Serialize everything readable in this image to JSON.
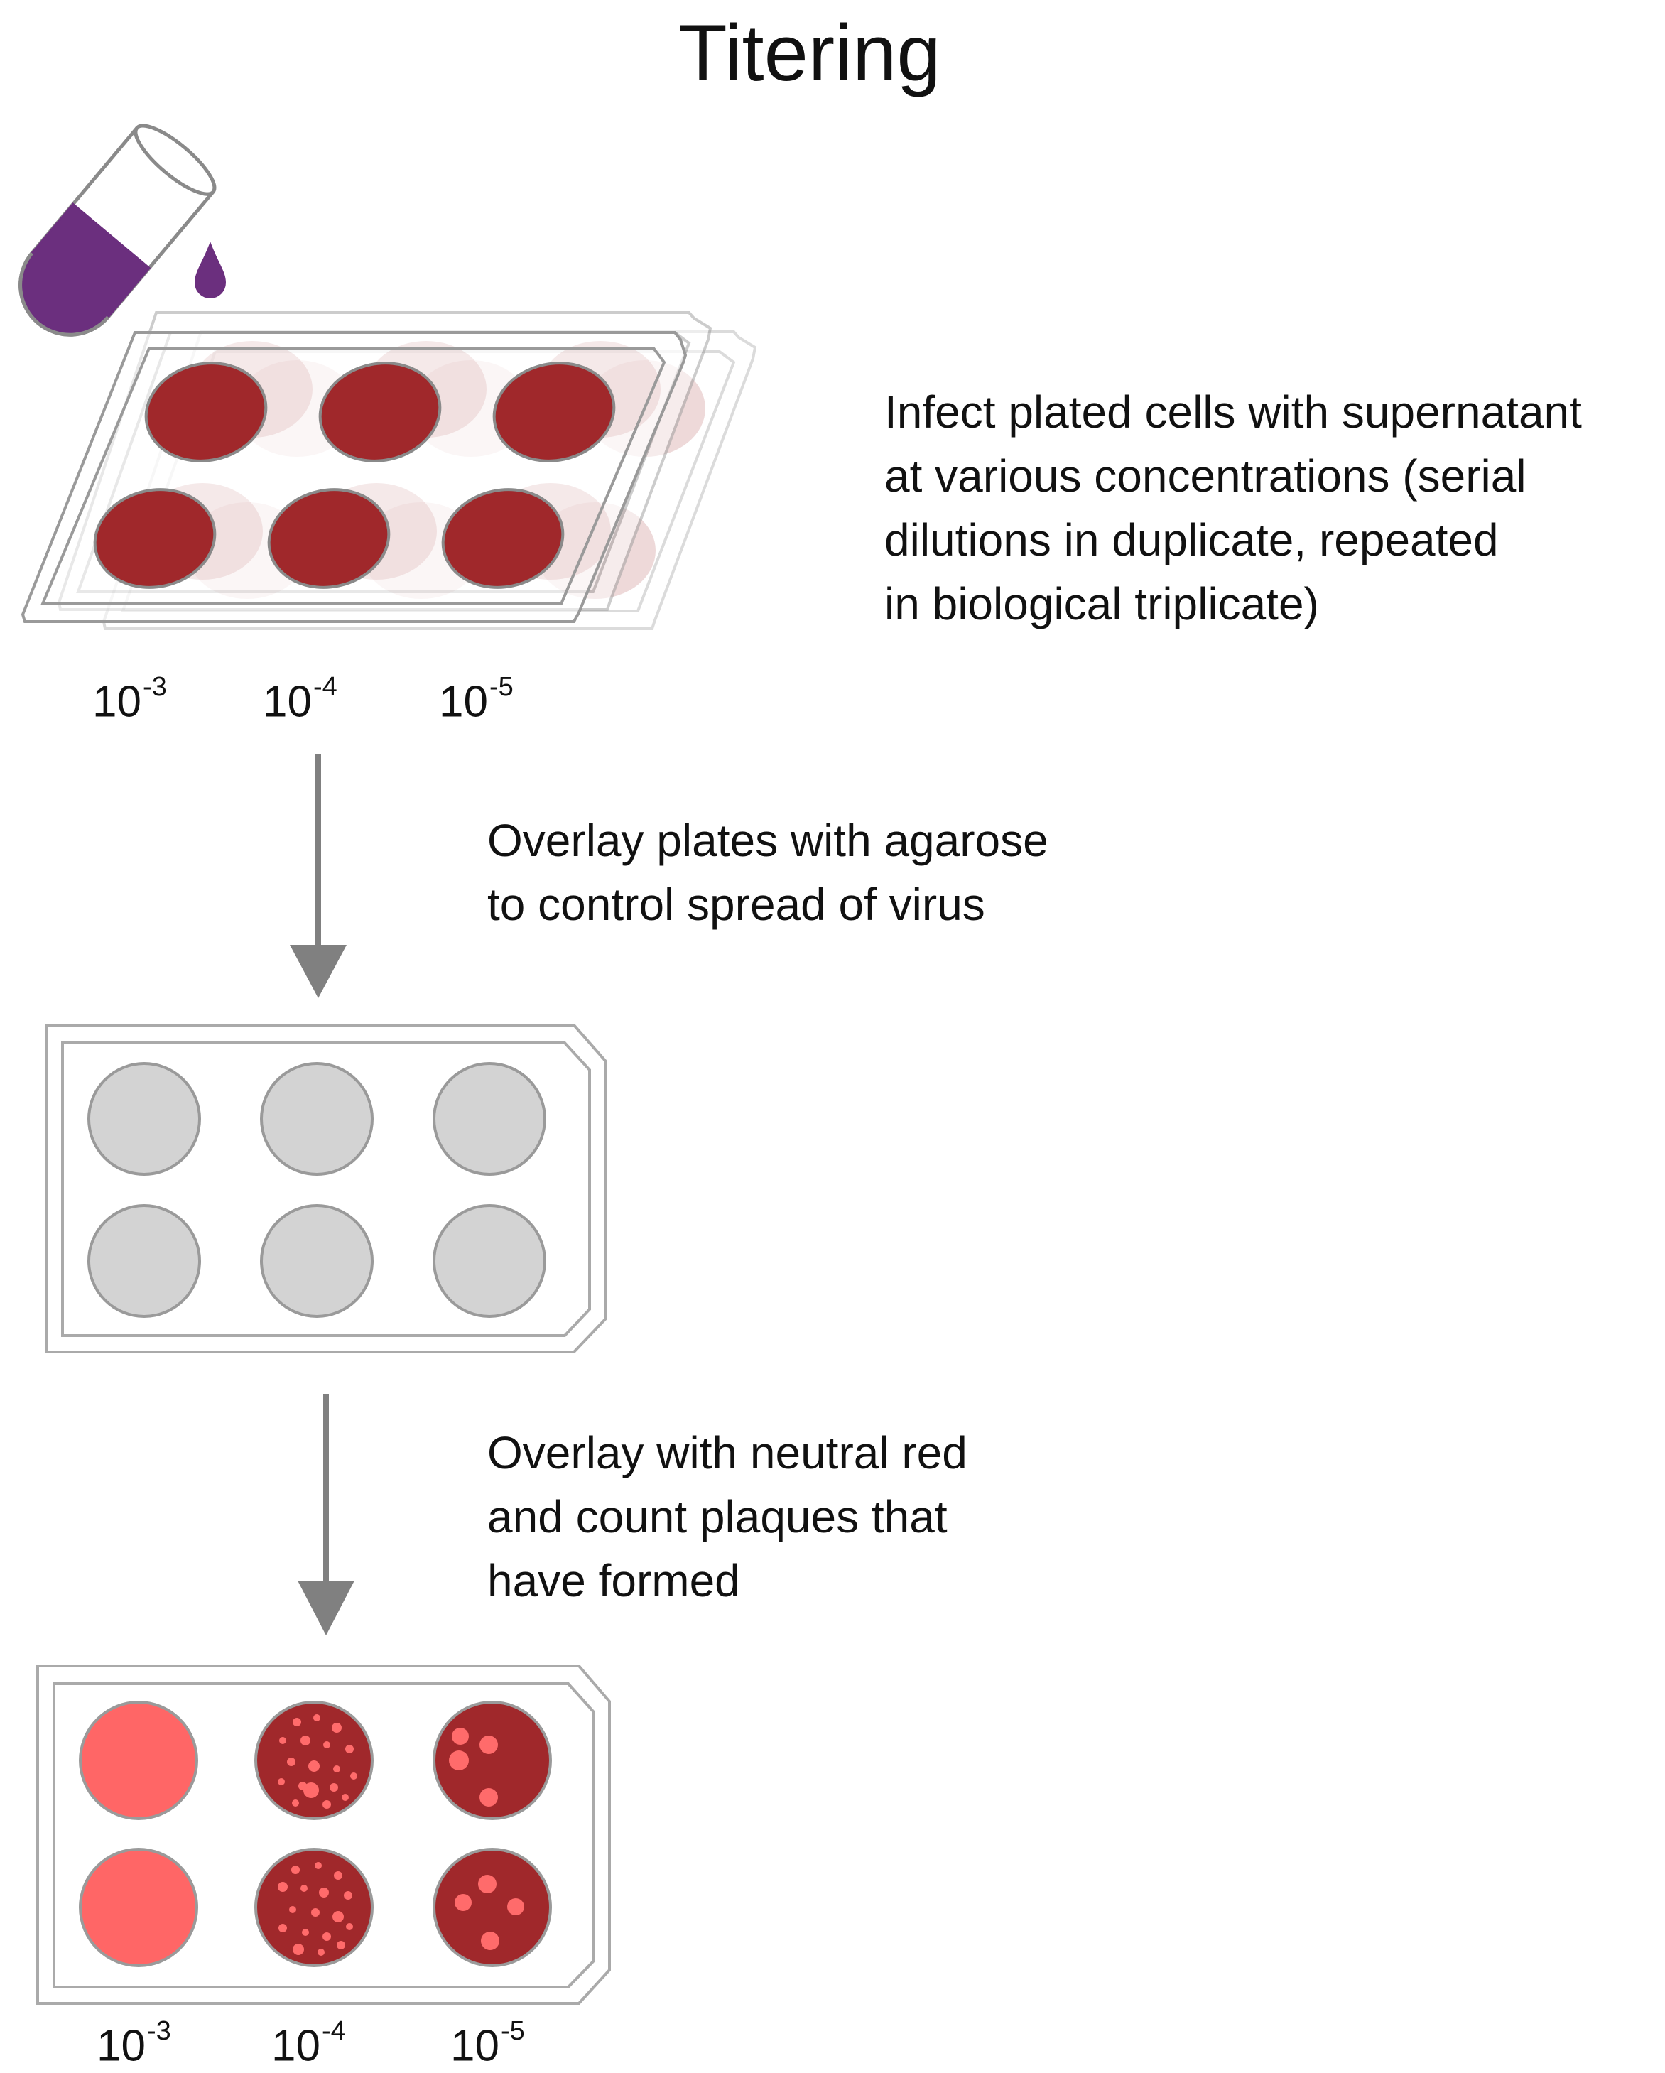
{
  "title": "Titering",
  "steps": [
    {
      "text": "Infect plated cells with supernatant\nat various concentrations (serial\ndilutions in duplicate, repeated\nin biological triplicate)"
    },
    {
      "text": "Overlay plates with agarose\nto control spread of virus"
    },
    {
      "text": "Overlay with neutral red\nand count plaques that\nhave formed"
    }
  ],
  "dilutions": [
    {
      "base": "10",
      "exp": "-3"
    },
    {
      "base": "10",
      "exp": "-4"
    },
    {
      "base": "10",
      "exp": "-5"
    }
  ],
  "colors": {
    "tube_liquid": "#6b2f7e",
    "infected_well": "#a0282b",
    "agarose_well": "#d3d3d3",
    "cleared_well": "#ff6666",
    "plaque": "#ff6b6b",
    "arrow": "#808080",
    "plate_outline": "#aaaaaa"
  },
  "icons": {
    "tube": "pouring-tube-icon",
    "drop": "liquid-drop-icon",
    "arrow": "down-arrow-icon"
  }
}
